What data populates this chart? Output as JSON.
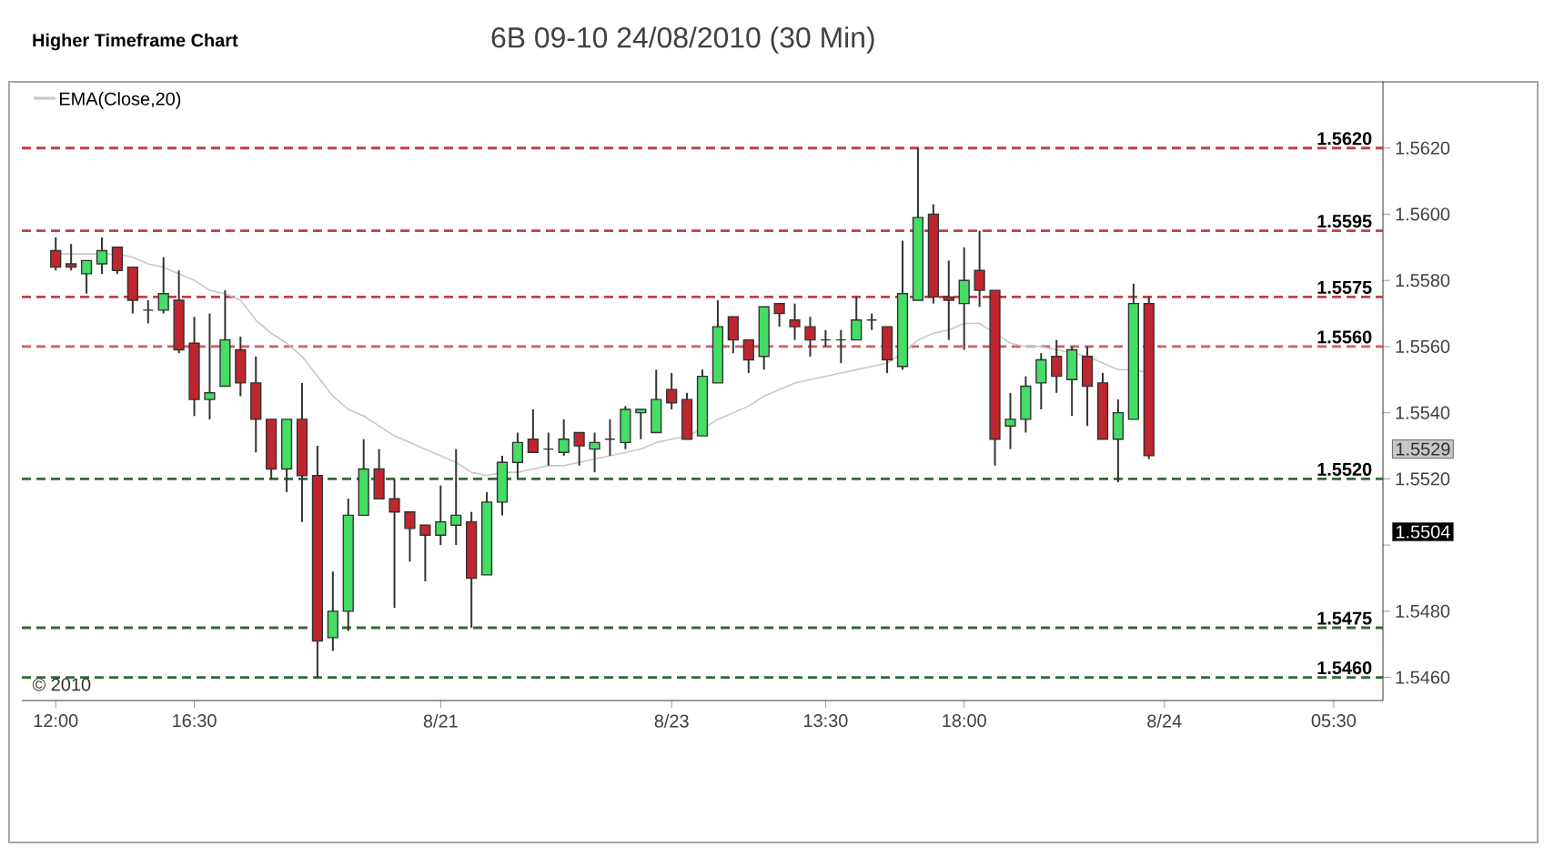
{
  "chart_data": {
    "type": "candlestick",
    "title": "Higher Timeframe Chart",
    "subtitle": "6B 09-10  24/08/2010 (30 Min)",
    "categories": [
      "12:00",
      null,
      null,
      null,
      null,
      null,
      null,
      null,
      null,
      "16:30",
      null,
      null,
      null,
      null,
      null,
      null,
      null,
      null,
      null,
      null,
      null,
      null,
      null,
      null,
      null,
      "8/21",
      null,
      null,
      null,
      null,
      null,
      null,
      null,
      null,
      null,
      null,
      null,
      null,
      null,
      null,
      "8/23",
      null,
      null,
      null,
      null,
      null,
      null,
      null,
      null,
      null,
      "13:30",
      null,
      null,
      null,
      null,
      null,
      null,
      null,
      null,
      "18:00",
      null,
      null,
      null,
      null,
      null,
      null,
      null,
      null,
      null,
      null,
      null,
      null,
      "8/24",
      null,
      null,
      null,
      null,
      null,
      null,
      null,
      null,
      null,
      null,
      "05:30",
      null,
      null,
      null
    ],
    "ohlc": [
      [
        1.5589,
        1.5593,
        1.5583,
        1.5584
      ],
      [
        1.5585,
        1.5591,
        1.5583,
        1.5584
      ],
      [
        1.5582,
        1.5586,
        1.5576,
        1.5586
      ],
      [
        1.5585,
        1.5593,
        1.5582,
        1.5589
      ],
      [
        1.559,
        1.559,
        1.5582,
        1.5583
      ],
      [
        1.5584,
        1.5584,
        1.557,
        1.5574
      ],
      [
        1.5571,
        1.5574,
        1.5567,
        1.5571
      ],
      [
        1.5571,
        1.5587,
        1.557,
        1.5576
      ],
      [
        1.5574,
        1.5583,
        1.5558,
        1.5559
      ],
      [
        1.5561,
        1.5569,
        1.5539,
        1.5544
      ],
      [
        1.5544,
        1.557,
        1.5538,
        1.5546
      ],
      [
        1.5548,
        1.5577,
        1.5548,
        1.5562
      ],
      [
        1.5559,
        1.5563,
        1.5545,
        1.5549
      ],
      [
        1.5549,
        1.5557,
        1.5528,
        1.5538
      ],
      [
        1.5538,
        1.5538,
        1.552,
        1.5523
      ],
      [
        1.5523,
        1.5538,
        1.5516,
        1.5538
      ],
      [
        1.5538,
        1.5549,
        1.5507,
        1.5521
      ],
      [
        1.5521,
        1.553,
        1.546,
        1.5471
      ],
      [
        1.5472,
        1.5492,
        1.5468,
        1.548
      ],
      [
        1.548,
        1.5514,
        1.5474,
        1.5509
      ],
      [
        1.5509,
        1.5532,
        1.5509,
        1.5523
      ],
      [
        1.5523,
        1.5529,
        1.5514,
        1.5514
      ],
      [
        1.5514,
        1.552,
        1.5481,
        1.551
      ],
      [
        1.551,
        1.551,
        1.5495,
        1.5505
      ],
      [
        1.5506,
        1.5506,
        1.5489,
        1.5503
      ],
      [
        1.5503,
        1.5518,
        1.55,
        1.5507
      ],
      [
        1.5506,
        1.5529,
        1.55,
        1.5509
      ],
      [
        1.5507,
        1.551,
        1.5475,
        1.549
      ],
      [
        1.5491,
        1.5516,
        1.5491,
        1.5513
      ],
      [
        1.5513,
        1.5527,
        1.5509,
        1.5525
      ],
      [
        1.5525,
        1.5534,
        1.552,
        1.5531
      ],
      [
        1.5532,
        1.5541,
        1.5528,
        1.5528
      ],
      [
        1.5529,
        1.5534,
        1.5524,
        1.5529
      ],
      [
        1.5528,
        1.5538,
        1.5527,
        1.5532
      ],
      [
        1.5534,
        1.5534,
        1.5524,
        1.553
      ],
      [
        1.5529,
        1.5534,
        1.5522,
        1.5531
      ],
      [
        1.5532,
        1.5538,
        1.5527,
        1.5532
      ],
      [
        1.5531,
        1.5542,
        1.5529,
        1.5541
      ],
      [
        1.554,
        1.5541,
        1.5532,
        1.5541
      ],
      [
        1.5534,
        1.5553,
        1.5534,
        1.5544
      ],
      [
        1.5547,
        1.5552,
        1.5541,
        1.5543
      ],
      [
        1.5544,
        1.5546,
        1.5532,
        1.5532
      ],
      [
        1.5533,
        1.5553,
        1.5533,
        1.5551
      ],
      [
        1.5549,
        1.5574,
        1.5549,
        1.5566
      ],
      [
        1.5569,
        1.5569,
        1.5558,
        1.5562
      ],
      [
        1.5562,
        1.5562,
        1.5552,
        1.5556
      ],
      [
        1.5557,
        1.5572,
        1.5553,
        1.5572
      ],
      [
        1.5573,
        1.5573,
        1.5566,
        1.557
      ],
      [
        1.5568,
        1.5573,
        1.5562,
        1.5566
      ],
      [
        1.5566,
        1.5569,
        1.5557,
        1.5562
      ],
      [
        1.5562,
        1.5565,
        1.556,
        1.5562
      ],
      [
        1.5562,
        1.5565,
        1.5555,
        1.5562
      ],
      [
        1.5562,
        1.5575,
        1.5562,
        1.5568
      ],
      [
        1.5568,
        1.557,
        1.5565,
        1.5568
      ],
      [
        1.5566,
        1.5566,
        1.5552,
        1.5556
      ],
      [
        1.5554,
        1.5592,
        1.5553,
        1.5576
      ],
      [
        1.5574,
        1.562,
        1.5574,
        1.5599
      ],
      [
        1.56,
        1.5603,
        1.5573,
        1.5575
      ],
      [
        1.5575,
        1.5586,
        1.5562,
        1.5574
      ],
      [
        1.5573,
        1.559,
        1.5559,
        1.558
      ],
      [
        1.5583,
        1.5595,
        1.5572,
        1.5577
      ],
      [
        1.5577,
        1.5577,
        1.5524,
        1.5532
      ],
      [
        1.5536,
        1.5546,
        1.5529,
        1.5538
      ],
      [
        1.5538,
        1.5551,
        1.5534,
        1.5548
      ],
      [
        1.5549,
        1.5558,
        1.5541,
        1.5556
      ],
      [
        1.5557,
        1.5562,
        1.5546,
        1.5551
      ],
      [
        1.555,
        1.556,
        1.5539,
        1.5559
      ],
      [
        1.5557,
        1.556,
        1.5536,
        1.5548
      ],
      [
        1.5549,
        1.5552,
        1.5532,
        1.5532
      ],
      [
        1.5532,
        1.5544,
        1.5519,
        1.554
      ],
      [
        1.5538,
        1.5579,
        1.5538,
        1.5573
      ],
      [
        1.5573,
        1.5575,
        1.5526,
        1.5527
      ],
      null,
      null,
      null,
      null,
      null,
      null,
      null,
      null,
      null,
      null,
      null,
      null,
      null,
      null,
      null
    ],
    "series": [
      {
        "name": "EMA(Close,20)",
        "type": "line",
        "color": "#c8c8c8",
        "values": [
          1.5588,
          1.5588,
          1.5588,
          1.5588,
          1.5588,
          1.5587,
          1.5585,
          1.5584,
          1.5582,
          1.558,
          1.5577,
          1.5576,
          1.5574,
          1.5568,
          1.5564,
          1.5561,
          1.5557,
          1.5551,
          1.5545,
          1.5541,
          1.5539,
          1.5536,
          1.5533,
          1.5531,
          1.5529,
          1.5527,
          1.5525,
          1.5522,
          1.5521,
          1.5522,
          1.5522,
          1.5523,
          1.5524,
          1.5524,
          1.5525,
          1.5526,
          1.5527,
          1.5528,
          1.5529,
          1.5531,
          1.5532,
          1.5533,
          1.5535,
          1.5538,
          1.554,
          1.5542,
          1.5545,
          1.5547,
          1.5549,
          1.555,
          1.5551,
          1.5552,
          1.5553,
          1.5554,
          1.5555,
          1.5558,
          1.5562,
          1.5564,
          1.5565,
          1.5567,
          1.5567,
          1.5564,
          1.5561,
          1.556,
          1.556,
          1.5559,
          1.5558,
          1.5557,
          1.5555,
          1.5553,
          1.5553,
          1.5552,
          null,
          null,
          null,
          null,
          null,
          null,
          null,
          null,
          null,
          null,
          null,
          null,
          null,
          null,
          null
        ]
      }
    ],
    "ylim": [
      1.5453,
      1.564
    ],
    "yticks": [
      {
        "value": 1.546,
        "label": "1.5460"
      },
      {
        "value": 1.548,
        "label": "1.5480"
      },
      {
        "value": 1.55,
        "label": null
      },
      {
        "value": 1.5504,
        "label": "1.5504"
      },
      {
        "value": 1.552,
        "label": "1.5520"
      },
      {
        "value": 1.5529,
        "label": "1.5529"
      },
      {
        "value": 1.554,
        "label": "1.5540"
      },
      {
        "value": 1.556,
        "label": "1.5560"
      },
      {
        "value": 1.558,
        "label": "1.5580"
      },
      {
        "value": 1.56,
        "label": "1.5600"
      },
      {
        "value": 1.562,
        "label": "1.5620"
      }
    ],
    "ref_lines": [
      {
        "axis": "y",
        "value": 1.562,
        "label": "1.5620",
        "color": "#c0404a",
        "line_style": "dashed"
      },
      {
        "axis": "y",
        "value": 1.5595,
        "label": "1.5595",
        "color": "#c0404a",
        "line_style": "dashed"
      },
      {
        "axis": "y",
        "value": 1.5575,
        "label": "1.5575",
        "color": "#c0404a",
        "line_style": "dashed"
      },
      {
        "axis": "y",
        "value": 1.556,
        "label": "1.5560",
        "color": "#d0605a",
        "line_style": "dashed"
      },
      {
        "axis": "y",
        "value": 1.552,
        "label": "1.5520",
        "color": "#2e6b35",
        "line_style": "dashed"
      },
      {
        "axis": "y",
        "value": 1.5475,
        "label": "1.5475",
        "color": "#2e6b35",
        "line_style": "dashed"
      },
      {
        "axis": "y",
        "value": 1.546,
        "label": "1.5460",
        "color": "#2e6b35",
        "line_style": "dashed"
      }
    ],
    "annotations": [
      "© 2010"
    ]
  }
}
